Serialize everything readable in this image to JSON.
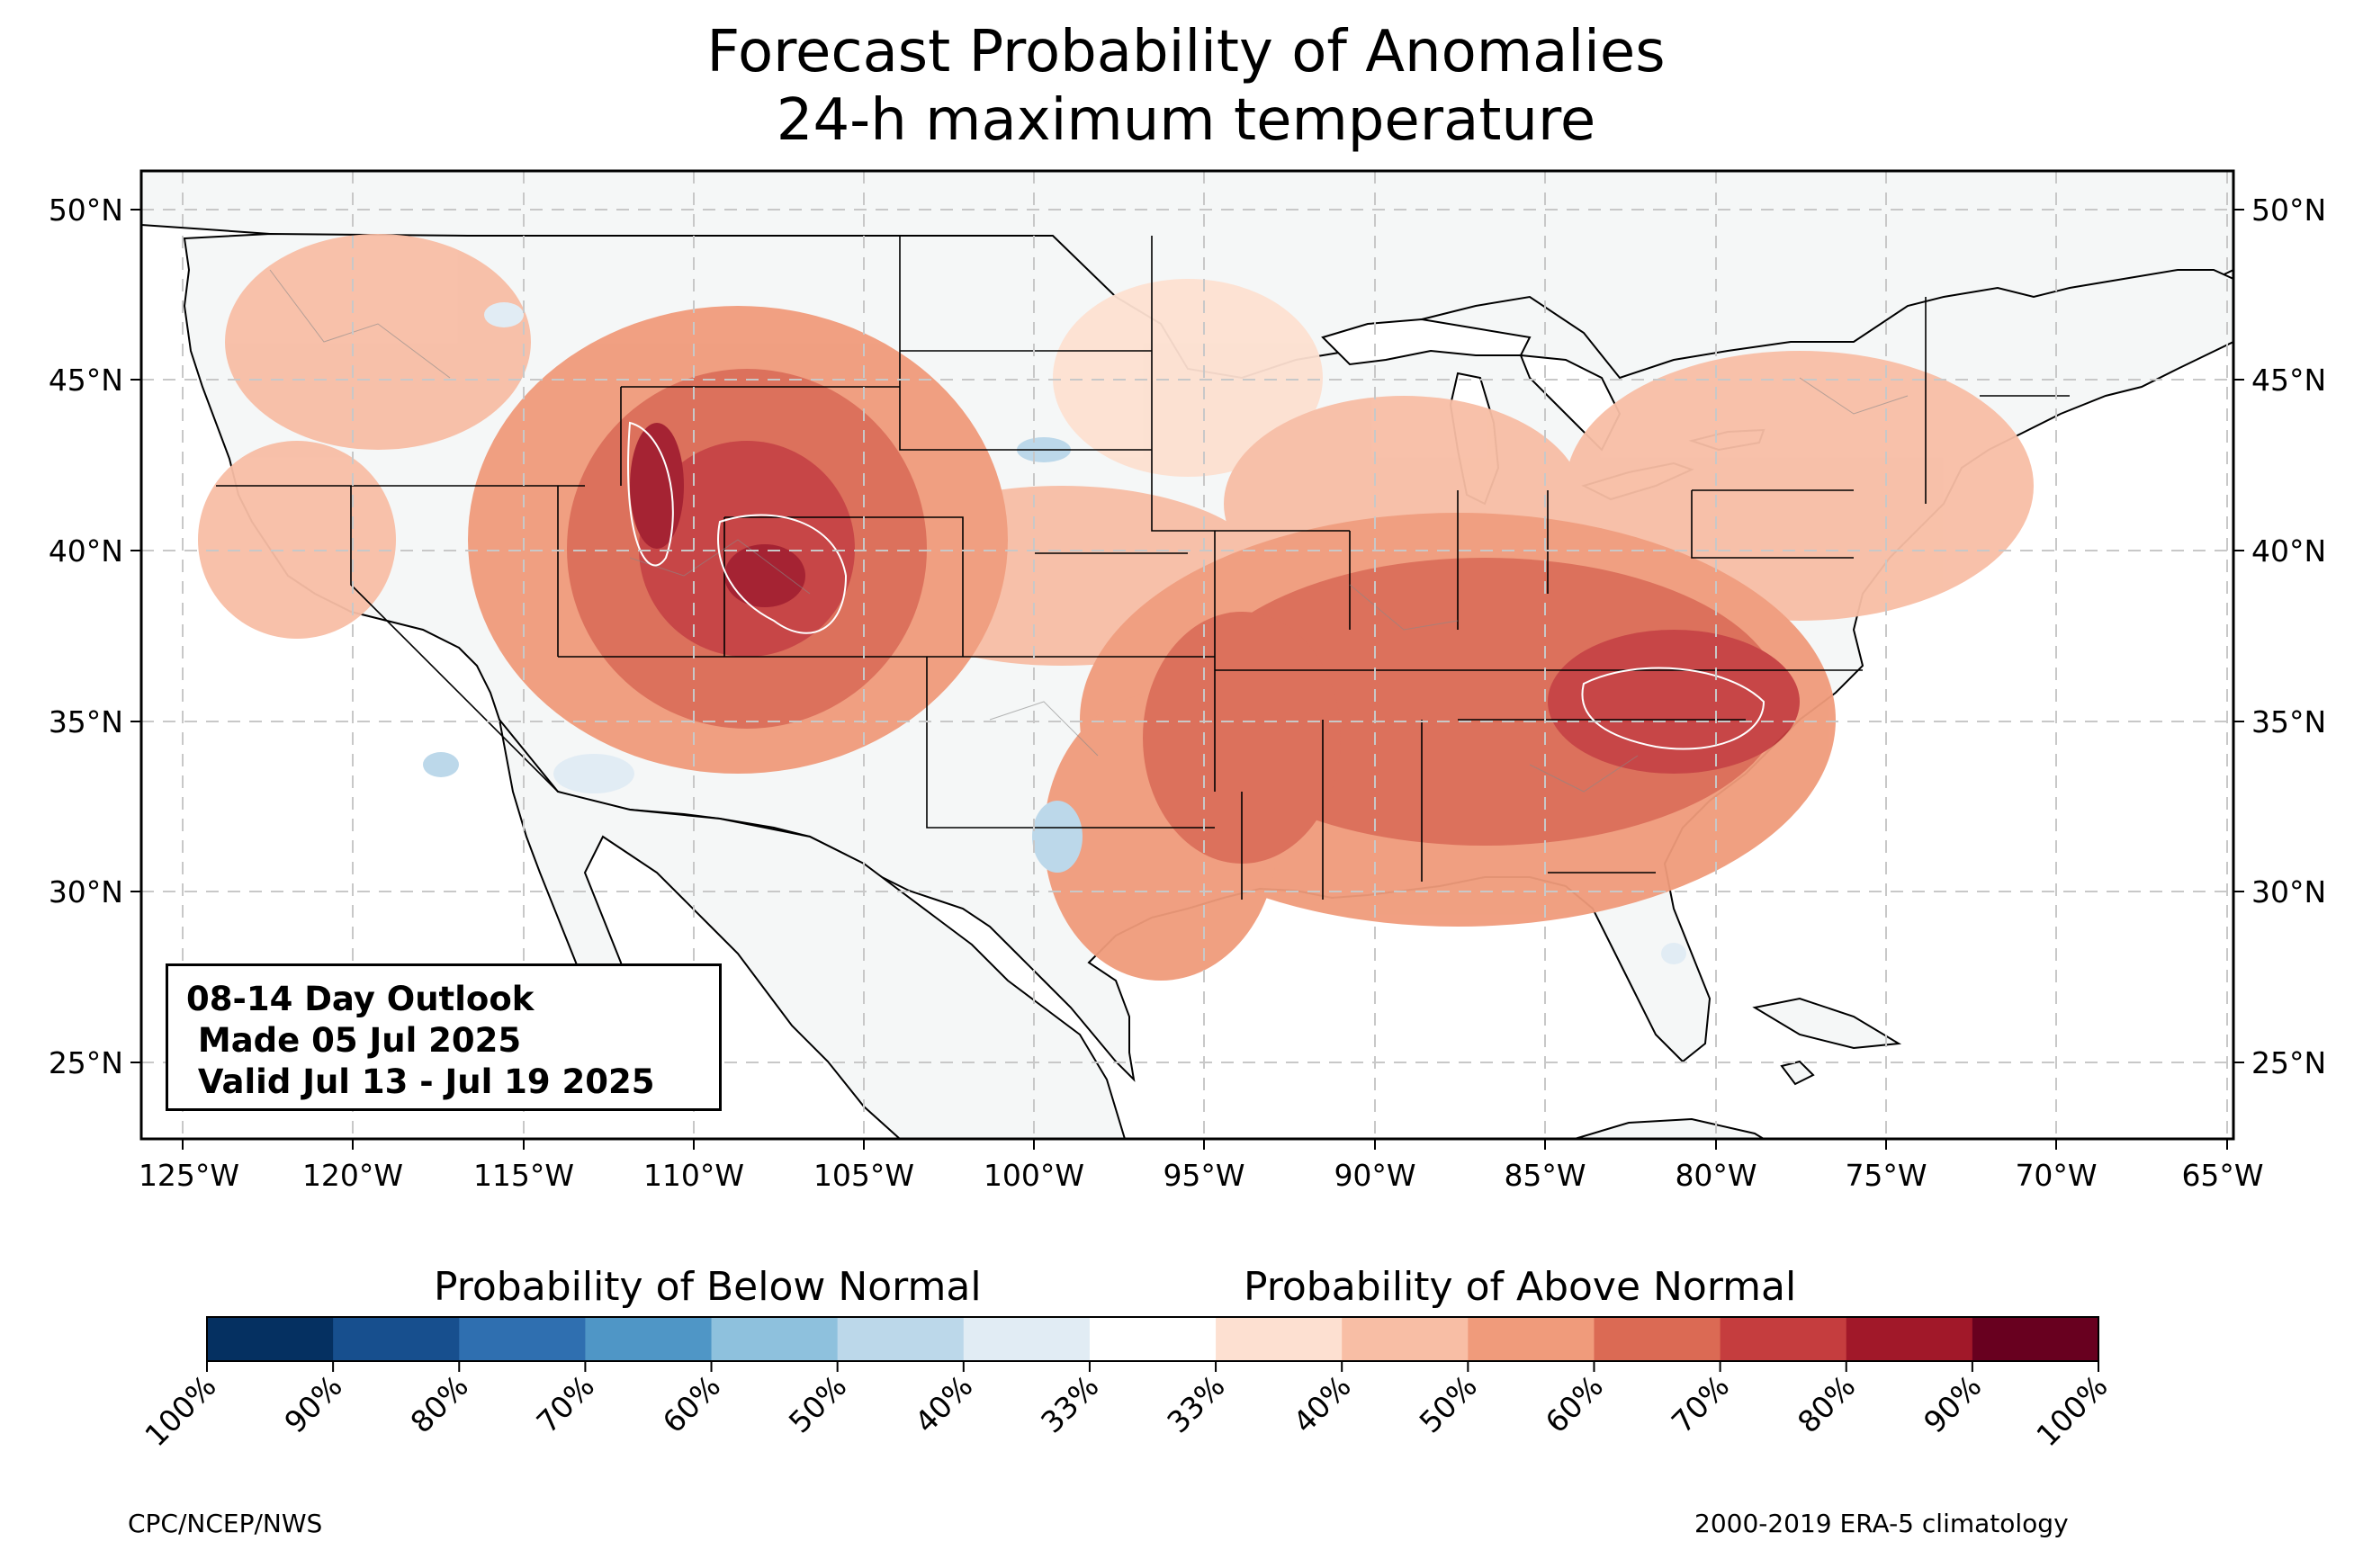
{
  "title": {
    "line1": "Forecast Probability of Anomalies",
    "line2": "24-h maximum temperature"
  },
  "lat_labels": [
    "50°N",
    "45°N",
    "40°N",
    "35°N",
    "30°N",
    "25°N"
  ],
  "lon_labels": [
    "125°W",
    "120°W",
    "115°W",
    "110°W",
    "105°W",
    "100°W",
    "95°W",
    "90°W",
    "85°W",
    "80°W",
    "75°W",
    "70°W",
    "65°W"
  ],
  "outlook": {
    "line1": "08-14 Day Outlook",
    "line2": " Made 05 Jul 2025",
    "line3": " Valid Jul 13 - Jul 19 2025"
  },
  "colorbar": {
    "below_label": "Probability of Below Normal",
    "above_label": "Probability of Above Normal",
    "ticks": [
      "100%",
      "90%",
      "80%",
      "70%",
      "60%",
      "50%",
      "40%",
      "33%",
      "33%",
      "40%",
      "50%",
      "60%",
      "70%",
      "80%",
      "90%",
      "100%"
    ],
    "colors": [
      "#053061",
      "#174f8e",
      "#2f6fb0",
      "#4f96c6",
      "#8ec1dd",
      "#bcd8ea",
      "#e1ecf4",
      "#ffffff",
      "#fde0d1",
      "#f8bea5",
      "#f09b7b",
      "#db6a54",
      "#c53d3e",
      "#a11829",
      "#68001f"
    ]
  },
  "footer": {
    "left": "CPC/NCEP/NWS",
    "right": "2000-2019 ERA-5 climatology"
  },
  "map": {
    "land_color": "#f5f7f7",
    "ocean_color": "#ffffff",
    "above_colors": [
      "#fde0d1",
      "#f8bea5",
      "#f09b7b",
      "#db6a54",
      "#c53d3e",
      "#a11829"
    ],
    "below_colors": [
      "#e1ecf4",
      "#bcd8ea",
      "#8ec1dd"
    ]
  }
}
